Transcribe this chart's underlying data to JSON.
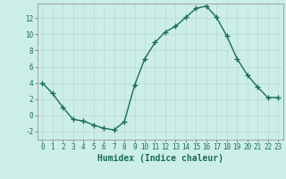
{
  "x": [
    0,
    1,
    2,
    3,
    4,
    5,
    6,
    7,
    8,
    9,
    10,
    11,
    12,
    13,
    14,
    15,
    16,
    17,
    18,
    19,
    20,
    21,
    22,
    23
  ],
  "y": [
    4,
    2.7,
    1,
    -0.5,
    -0.7,
    -1.2,
    -1.6,
    -1.8,
    -0.8,
    3.7,
    7,
    9,
    10.3,
    11,
    12.1,
    13.2,
    13.5,
    12.1,
    9.8,
    7,
    5,
    3.5,
    2.2,
    2.2
  ],
  "line_color": "#1a6b5a",
  "marker": "+",
  "marker_size": 4,
  "marker_linewidth": 1.0,
  "bg_color": "#cceee8",
  "grid_major_color": "#b8d8d4",
  "grid_minor_color": "#d8eeea",
  "xlabel": "Humidex (Indice chaleur)",
  "xlabel_fontsize": 7,
  "yticks": [
    -2,
    0,
    2,
    4,
    6,
    8,
    10,
    12
  ],
  "ylim": [
    -3.0,
    13.8
  ],
  "xlim": [
    -0.5,
    23.5
  ],
  "xticks": [
    0,
    1,
    2,
    3,
    4,
    5,
    6,
    7,
    8,
    9,
    10,
    11,
    12,
    13,
    14,
    15,
    16,
    17,
    18,
    19,
    20,
    21,
    22,
    23
  ],
  "tick_fontsize": 5.5,
  "linewidth": 1.0
}
